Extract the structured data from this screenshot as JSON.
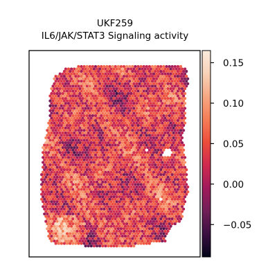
{
  "chart_data": {
    "type": "heatmap",
    "subtype": "spatial-transcriptomics-hexbin",
    "title_line1": "UKF259",
    "title_line2": "IL6/JAK/STAT3 Signaling activity",
    "xlabel": "",
    "ylabel": "",
    "axis_ticks_visible": false,
    "grid": false,
    "legend": "colorbar-right",
    "colormap": "rocket",
    "colormap_stops": [
      "#03051a",
      "#3b0f41",
      "#701f57",
      "#a11a5b",
      "#cf2a4f",
      "#ec4d3b",
      "#f47d57",
      "#f6a883",
      "#f9d2b8",
      "#faebdd"
    ],
    "value_range": [
      -0.09,
      0.165
    ],
    "colorbar_ticks": [
      {
        "value": 0.15,
        "label": "0.15"
      },
      {
        "value": 0.1,
        "label": "0.10"
      },
      {
        "value": 0.05,
        "label": "0.05"
      },
      {
        "value": 0.0,
        "label": "0.00"
      },
      {
        "value": -0.05,
        "label": "−0.05"
      }
    ],
    "spot_value_summary": {
      "mean": 0.035,
      "typical_range": [
        -0.05,
        0.15
      ]
    }
  }
}
